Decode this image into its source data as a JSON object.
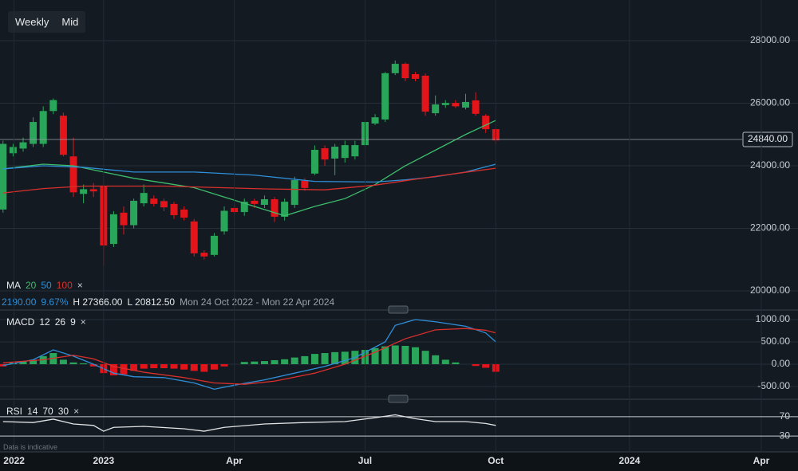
{
  "toolbar": {
    "buttons": [
      "Weekly",
      "Mid"
    ]
  },
  "footer_note": "Data is indicative",
  "chart_data": [
    {
      "type": "candlestick",
      "legend_title": "MA",
      "close_label": "×",
      "info": {
        "change": "2190.00",
        "change_pct": "9.67%",
        "high_label": "H 27366.00",
        "low_label": "L 20812.50",
        "range": "Mon 24 Oct 2022 - Mon 22 Apr 2024"
      },
      "xlim": [
        -10.3,
        69.05
      ],
      "ylim": [
        19413,
        29300
      ],
      "yticks": [
        {
          "value": 20000,
          "label": "20000.00"
        },
        {
          "value": 22000,
          "label": "22000.00"
        },
        {
          "value": 24000,
          "label": "24000.00"
        },
        {
          "value": 26000,
          "label": "26000.00"
        },
        {
          "value": 28000,
          "label": "28000.00"
        }
      ],
      "grid": true,
      "grid_color": "#26303b",
      "colors": {
        "up": "#2aa65a",
        "down": "#e3151b"
      },
      "last_price": {
        "value": 24840,
        "label": "24840.00"
      },
      "x": [
        -10,
        -9,
        -8,
        -7,
        -6,
        -5,
        -4,
        -3,
        -2,
        -1,
        0,
        1,
        2,
        3,
        4,
        5,
        6,
        7,
        8,
        9,
        10,
        11,
        12,
        13,
        14,
        15,
        16,
        17,
        18,
        19,
        20,
        21,
        22,
        23,
        24,
        25,
        26,
        27,
        28,
        29,
        30,
        31,
        32,
        33,
        34,
        35,
        36,
        37,
        38,
        39
      ],
      "open": [
        22600,
        24400,
        24550,
        24700,
        24700,
        25750,
        25600,
        24300,
        23100,
        23250,
        23350,
        21500,
        22500,
        22100,
        22800,
        22950,
        22870,
        22780,
        22600,
        22220,
        21220,
        21150,
        21900,
        22650,
        22520,
        22880,
        22750,
        22930,
        22370,
        22750,
        23520,
        23750,
        24560,
        24230,
        24250,
        24300,
        24660,
        25350,
        25480,
        26960,
        27260,
        26930,
        26880,
        25680,
        25940,
        26010,
        25860,
        26090,
        25600,
        25170
      ],
      "high": [
        24800,
        24700,
        24900,
        25550,
        25900,
        26150,
        25700,
        24900,
        23400,
        23450,
        23400,
        22550,
        22700,
        22950,
        23400,
        23050,
        22950,
        22850,
        22700,
        22300,
        21300,
        21850,
        22700,
        22750,
        22950,
        22950,
        23050,
        23000,
        22950,
        23650,
        23600,
        24650,
        24650,
        24700,
        24800,
        24800,
        25450,
        25650,
        27000,
        27366,
        27300,
        27000,
        26950,
        26250,
        26100,
        26100,
        26300,
        26350,
        25650,
        25200
      ],
      "low": [
        22500,
        24300,
        24450,
        24600,
        24600,
        25650,
        24300,
        23000,
        22800,
        23000,
        20812.5,
        21400,
        21800,
        22000,
        22700,
        22700,
        22550,
        22300,
        22250,
        21100,
        21000,
        21100,
        21800,
        22450,
        22400,
        22650,
        22650,
        22200,
        22250,
        22650,
        23200,
        23700,
        24000,
        23700,
        24100,
        24200,
        24600,
        25300,
        25400,
        26900,
        26700,
        26700,
        25600,
        25600,
        25850,
        25850,
        25800,
        25600,
        25050,
        24700
      ],
      "close": [
        24700,
        24600,
        24750,
        25400,
        25750,
        26100,
        24350,
        23150,
        23250,
        23180,
        21450,
        22450,
        22100,
        22880,
        23130,
        22780,
        22670,
        22420,
        22340,
        21200,
        21100,
        21760,
        22560,
        22520,
        22850,
        22780,
        22930,
        22370,
        22850,
        23540,
        23290,
        24510,
        24200,
        24610,
        24660,
        24660,
        25400,
        25550,
        26960,
        27260,
        26800,
        26780,
        25730,
        25960,
        26010,
        25900,
        26040,
        25660,
        25170,
        24810
      ],
      "series": [
        {
          "name": "20",
          "color": "#3dbd6c",
          "x": [
            -10,
            -6,
            -3,
            0,
            3,
            6,
            9,
            12,
            15,
            18,
            21,
            24,
            27,
            30,
            33,
            36,
            39
          ],
          "values": [
            23900,
            24050,
            24000,
            23800,
            23600,
            23450,
            23300,
            23000,
            22700,
            22400,
            22700,
            22950,
            23400,
            24000,
            24500,
            25000,
            25450
          ]
        },
        {
          "name": "50",
          "color": "#2f8fd8",
          "x": [
            -10,
            -6,
            -2,
            3,
            9,
            15,
            21,
            27,
            30,
            33,
            36,
            39
          ],
          "values": [
            23900,
            24000,
            23950,
            23800,
            23800,
            23700,
            23500,
            23480,
            23550,
            23650,
            23800,
            24050
          ]
        },
        {
          "name": "100",
          "color": "#d9302c",
          "x": [
            -10,
            -6,
            -2,
            6,
            16,
            22,
            27,
            31,
            35,
            39
          ],
          "values": [
            23130,
            23270,
            23350,
            23350,
            23260,
            23230,
            23380,
            23570,
            23750,
            23920
          ]
        }
      ]
    },
    {
      "type": "bar",
      "legend_title": "MACD",
      "params": [
        "12",
        "26",
        "9"
      ],
      "close_label": "×",
      "xlim": [
        -10.3,
        69.05
      ],
      "ylim": [
        -768,
        1196
      ],
      "yticks": [
        {
          "value": -500,
          "label": "-500.00"
        },
        {
          "value": 0,
          "label": "0.00"
        },
        {
          "value": 500,
          "label": "500.00"
        },
        {
          "value": 1000,
          "label": "1000.00"
        }
      ],
      "grid": true,
      "grid_color": "#26303b",
      "colors": {
        "up": "#2aa65a",
        "down": "#e3151b"
      },
      "histogram": {
        "x": [
          -10,
          -9,
          -8,
          -7,
          -6,
          -5,
          -4,
          -3,
          -2,
          -1,
          0,
          1,
          2,
          3,
          4,
          5,
          6,
          7,
          8,
          9,
          10,
          11,
          12,
          13,
          14,
          15,
          16,
          17,
          18,
          19,
          20,
          21,
          22,
          23,
          24,
          25,
          26,
          27,
          28,
          29,
          30,
          31,
          32,
          33,
          34,
          35,
          36,
          37,
          38,
          39
        ],
        "values": [
          -50,
          30,
          60,
          100,
          180,
          250,
          100,
          40,
          20,
          -50,
          -200,
          -250,
          -230,
          -150,
          -100,
          -90,
          -90,
          -100,
          -120,
          -150,
          -170,
          -120,
          -50,
          0,
          50,
          60,
          70,
          90,
          110,
          150,
          180,
          230,
          250,
          270,
          280,
          300,
          320,
          360,
          400,
          420,
          410,
          380,
          300,
          200,
          100,
          40,
          0,
          -40,
          -80,
          -170
        ]
      },
      "series": [
        {
          "color": "#2f8fd8",
          "x": [
            -10,
            -7,
            -5,
            -3,
            -1,
            1,
            3,
            6,
            9,
            11,
            13,
            16,
            19,
            22,
            25,
            28,
            29,
            31,
            33,
            36,
            38,
            39
          ],
          "values": [
            -30,
            100,
            320,
            180,
            0,
            -200,
            -280,
            -300,
            -420,
            -560,
            -470,
            -350,
            -200,
            -50,
            150,
            500,
            870,
            1000,
            950,
            850,
            700,
            500
          ]
        },
        {
          "color": "#d9302c",
          "x": [
            -10,
            -6,
            -3,
            -1,
            1,
            4,
            8,
            11,
            14,
            17,
            21,
            24,
            27,
            30,
            33,
            36,
            38,
            39
          ],
          "values": [
            30,
            100,
            200,
            120,
            -50,
            -180,
            -300,
            -420,
            -450,
            -380,
            -200,
            0,
            270,
            570,
            770,
            800,
            760,
            700
          ]
        }
      ]
    },
    {
      "type": "line",
      "legend_title": "RSI",
      "params": [
        "14",
        "70",
        "30"
      ],
      "close_label": "×",
      "xlim": [
        -10.3,
        69.05
      ],
      "ylim": [
        -1.3,
        103
      ],
      "yticks": [
        30,
        70
      ],
      "grid": true,
      "grid_color": "#c9ccd0",
      "xticks": [
        {
          "value": -8.9,
          "label": "2022"
        },
        {
          "value": 0,
          "label": "2023"
        },
        {
          "value": 13,
          "label": "Apr"
        },
        {
          "value": 26,
          "label": "Jul"
        },
        {
          "value": 39,
          "label": "Oct"
        },
        {
          "value": 52.3,
          "label": "2024"
        },
        {
          "value": 65.4,
          "label": "Apr"
        }
      ],
      "series": [
        {
          "color": "#e2e4e6",
          "x": [
            -10,
            -7,
            -5,
            -3,
            -1,
            0,
            1,
            4,
            8,
            10,
            12,
            16,
            20,
            24,
            27,
            29,
            31,
            33,
            36,
            38,
            39
          ],
          "values": [
            60,
            58,
            65,
            55,
            52,
            40,
            48,
            50,
            45,
            40,
            48,
            55,
            58,
            60,
            68,
            74,
            66,
            60,
            60,
            56,
            52
          ]
        }
      ]
    }
  ]
}
